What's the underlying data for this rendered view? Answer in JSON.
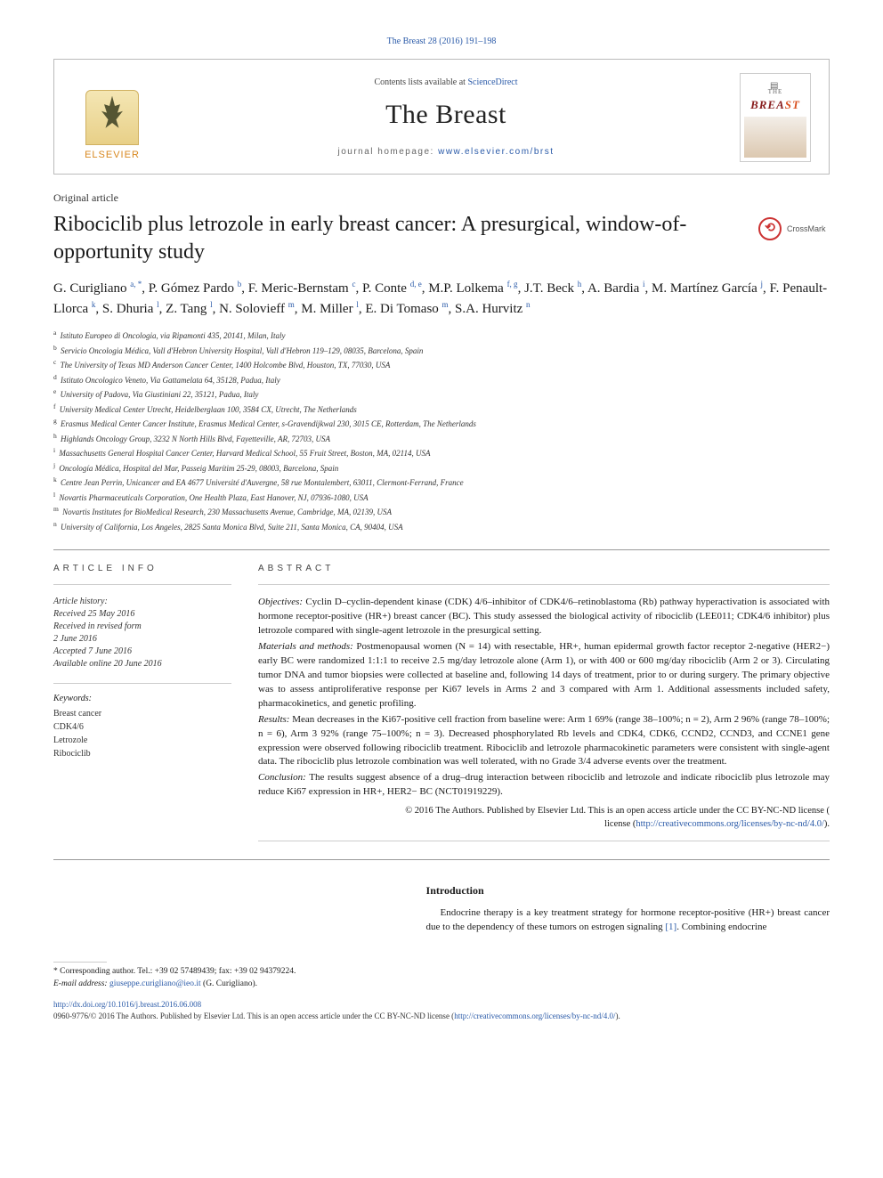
{
  "journal": {
    "citation": "The Breast 28 (2016) 191–198",
    "contents_prefix": "Contents lists available at ",
    "contents_link": "ScienceDirect",
    "name": "The Breast",
    "homepage_prefix": "journal homepage: ",
    "homepage_url": "www.elsevier.com/brst",
    "publisher": "ELSEVIER",
    "cover_tag": "THE",
    "cover_brand": "BREAST"
  },
  "article": {
    "type": "Original article",
    "title": "Ribociclib plus letrozole in early breast cancer: A presurgical, window-of-opportunity study",
    "crossmark": "CrossMark"
  },
  "authors_html": "G. Curigliano <sup>a, *</sup>, P. Gómez Pardo <sup>b</sup>, F. Meric-Bernstam <sup>c</sup>, P. Conte <sup>d, e</sup>, M.P. Lolkema <sup>f, g</sup>, J.T. Beck <sup>h</sup>, A. Bardia <sup>i</sup>, M. Martínez García <sup>j</sup>, F. Penault-Llorca <sup>k</sup>, S. Dhuria <sup>l</sup>, Z. Tang <sup>l</sup>, N. Solovieff <sup>m</sup>, M. Miller <sup>l</sup>, E. Di Tomaso <sup>m</sup>, S.A. Hurvitz <sup>n</sup>",
  "affiliations": [
    {
      "k": "a",
      "t": "Istituto Europeo di Oncologia, via Ripamonti 435, 20141, Milan, Italy"
    },
    {
      "k": "b",
      "t": "Servicio Oncologia Médica, Vall d'Hebron University Hospital, Vall d'Hebron 119–129, 08035, Barcelona, Spain"
    },
    {
      "k": "c",
      "t": "The University of Texas MD Anderson Cancer Center, 1400 Holcombe Blvd, Houston, TX, 77030, USA"
    },
    {
      "k": "d",
      "t": "Istituto Oncologico Veneto, Via Gattamelata 64, 35128, Padua, Italy"
    },
    {
      "k": "e",
      "t": "University of Padova, Via Giustiniani 22, 35121, Padua, Italy"
    },
    {
      "k": "f",
      "t": "University Medical Center Utrecht, Heidelberglaan 100, 3584 CX, Utrecht, The Netherlands"
    },
    {
      "k": "g",
      "t": "Erasmus Medical Center Cancer Institute, Erasmus Medical Center, s-Gravendijkwal 230, 3015 CE, Rotterdam, The Netherlands"
    },
    {
      "k": "h",
      "t": "Highlands Oncology Group, 3232 N North Hills Blvd, Fayetteville, AR, 72703, USA"
    },
    {
      "k": "i",
      "t": "Massachusetts General Hospital Cancer Center, Harvard Medical School, 55 Fruit Street, Boston, MA, 02114, USA"
    },
    {
      "k": "j",
      "t": "Oncología Médica, Hospital del Mar, Passeig Marítim 25-29, 08003, Barcelona, Spain"
    },
    {
      "k": "k",
      "t": "Centre Jean Perrin, Unicancer and EA 4677 Université d'Auvergne, 58 rue Montalembert, 63011, Clermont-Ferrand, France"
    },
    {
      "k": "l",
      "t": "Novartis Pharmaceuticals Corporation, One Health Plaza, East Hanover, NJ, 07936-1080, USA"
    },
    {
      "k": "m",
      "t": "Novartis Institutes for BioMedical Research, 230 Massachusetts Avenue, Cambridge, MA, 02139, USA"
    },
    {
      "k": "n",
      "t": "University of California, Los Angeles, 2825 Santa Monica Blvd, Suite 211, Santa Monica, CA, 90404, USA"
    }
  ],
  "article_info": {
    "heading": "ARTICLE INFO",
    "history_label": "Article history:",
    "history": [
      "Received 25 May 2016",
      "Received in revised form",
      "2 June 2016",
      "Accepted 7 June 2016",
      "Available online 20 June 2016"
    ],
    "keywords_label": "Keywords:",
    "keywords": [
      "Breast cancer",
      "CDK4/6",
      "Letrozole",
      "Ribociclib"
    ]
  },
  "abstract": {
    "heading": "ABSTRACT",
    "objectives_label": "Objectives:",
    "objectives": " Cyclin D–cyclin-dependent kinase (CDK) 4/6–inhibitor of CDK4/6–retinoblastoma (Rb) pathway hyperactivation is associated with hormone receptor-positive (HR+) breast cancer (BC). This study assessed the biological activity of ribociclib (LEE011; CDK4/6 inhibitor) plus letrozole compared with single-agent letrozole in the presurgical setting.",
    "methods_label": "Materials and methods:",
    "methods": " Postmenopausal women (N = 14) with resectable, HR+, human epidermal growth factor receptor 2-negative (HER2−) early BC were randomized 1:1:1 to receive 2.5 mg/day letrozole alone (Arm 1), or with 400 or 600 mg/day ribociclib (Arm 2 or 3). Circulating tumor DNA and tumor biopsies were collected at baseline and, following 14 days of treatment, prior to or during surgery. The primary objective was to assess antiproliferative response per Ki67 levels in Arms 2 and 3 compared with Arm 1. Additional assessments included safety, pharmacokinetics, and genetic profiling.",
    "results_label": "Results:",
    "results": " Mean decreases in the Ki67-positive cell fraction from baseline were: Arm 1 69% (range 38–100%; n = 2), Arm 2 96% (range 78–100%; n = 6), Arm 3 92% (range 75–100%; n = 3). Decreased phosphorylated Rb levels and CDK4, CDK6, CCND2, CCND3, and CCNE1 gene expression were observed following ribociclib treatment. Ribociclib and letrozole pharmacokinetic parameters were consistent with single-agent data. The ribociclib plus letrozole combination was well tolerated, with no Grade 3/4 adverse events over the treatment.",
    "conclusion_label": "Conclusion:",
    "conclusion": " The results suggest absence of a drug–drug interaction between ribociclib and letrozole and indicate ribociclib plus letrozole may reduce Ki67 expression in HR+, HER2− BC (NCT01919229).",
    "copyright": "© 2016 The Authors. Published by Elsevier Ltd. This is an open access article under the CC BY-NC-ND license (",
    "license_url": "http://creativecommons.org/licenses/by-nc-nd/4.0/",
    "license_close": ")."
  },
  "intro": {
    "heading": "Introduction",
    "text": "Endocrine therapy is a key treatment strategy for hormone receptor-positive (HR+) breast cancer due to the dependency of these tumors on estrogen signaling [1]. Combining endocrine",
    "ref": "[1]"
  },
  "corresponding": {
    "line1": "* Corresponding author. Tel.: +39 02 57489439; fax: +39 02 94379224.",
    "line2_label": "E-mail address: ",
    "email": "giuseppe.curigliano@ieo.it",
    "line2_suffix": " (G. Curigliano)."
  },
  "footer": {
    "doi": "http://dx.doi.org/10.1016/j.breast.2016.06.008",
    "issn_line": "0960-9776/© 2016 The Authors. Published by Elsevier Ltd. This is an open access article under the CC BY-NC-ND license (",
    "license_url": "http://creativecommons.org/licenses/by-nc-nd/4.0/",
    "close": ")."
  },
  "colors": {
    "link": "#2a5aa8",
    "text": "#1a1a1a",
    "rule": "#999999",
    "elsevier_orange": "#d88820",
    "crossmark_red": "#cc3333",
    "breast_red": "#8a2020"
  }
}
